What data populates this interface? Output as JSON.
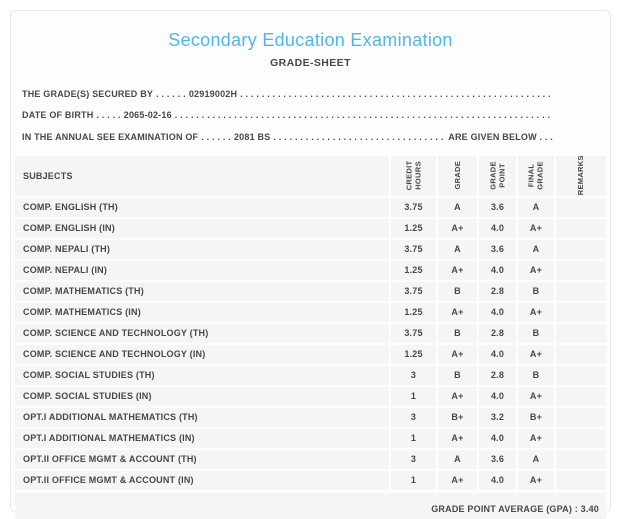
{
  "header": {
    "title": "Secondary Education Examination",
    "subtitle": "GRADE-SHEET"
  },
  "info": {
    "secured_by": {
      "label": "THE GRADE(S) SECURED BY",
      "leader": ". . . . . .",
      "value": "02919002H",
      "trailer": ". . . . . . . . . . . . . . . . . . . . . . . . . . . . . . . . . . . . . . . . . . . . . . . . . . . . . . . . . . . . . . . . . . . . . ."
    },
    "date_of_birth": {
      "label": "DATE OF BIRTH",
      "leader": ". . . . .",
      "value": "2065-02-16",
      "trailer": ". . . . . . . . . . . . . . . . . . . . . . . . . . . . . . . . . . . . . . . . . . . . . . . . . . . . . . . . . . . . . . . . . . . . . ."
    },
    "examination": {
      "label": "IN THE ANNUAL SEE EXAMINATION OF",
      "leader": ". . . . . .",
      "value": "2081 BS",
      "trailer": ". . . . . . . . . . . . . . . . . . . . . . . . . . . . . . . . . . . . . . . . . . . . . . . . . .",
      "suffix": "ARE GIVEN BELOW . . ."
    }
  },
  "table": {
    "subjects_header": "SUBJECTS",
    "columns": [
      "CREDIT HOURS",
      "GRADE",
      "GRADE POINT",
      "FINAL GRADE",
      "REMARKS"
    ],
    "rows": [
      {
        "subject": "COMP. ENGLISH (TH)",
        "credit_hours": "3.75",
        "grade": "A",
        "grade_point": "3.6",
        "final_grade": "A",
        "remarks": ""
      },
      {
        "subject": "COMP. ENGLISH (IN)",
        "credit_hours": "1.25",
        "grade": "A+",
        "grade_point": "4.0",
        "final_grade": "A+",
        "remarks": ""
      },
      {
        "subject": "COMP. NEPALI (TH)",
        "credit_hours": "3.75",
        "grade": "A",
        "grade_point": "3.6",
        "final_grade": "A",
        "remarks": ""
      },
      {
        "subject": "COMP. NEPALI (IN)",
        "credit_hours": "1.25",
        "grade": "A+",
        "grade_point": "4.0",
        "final_grade": "A+",
        "remarks": ""
      },
      {
        "subject": "COMP. MATHEMATICS (TH)",
        "credit_hours": "3.75",
        "grade": "B",
        "grade_point": "2.8",
        "final_grade": "B",
        "remarks": ""
      },
      {
        "subject": "COMP. MATHEMATICS (IN)",
        "credit_hours": "1.25",
        "grade": "A+",
        "grade_point": "4.0",
        "final_grade": "A+",
        "remarks": ""
      },
      {
        "subject": "COMP. SCIENCE AND TECHNOLOGY (TH)",
        "credit_hours": "3.75",
        "grade": "B",
        "grade_point": "2.8",
        "final_grade": "B",
        "remarks": ""
      },
      {
        "subject": "COMP. SCIENCE AND TECHNOLOGY (IN)",
        "credit_hours": "1.25",
        "grade": "A+",
        "grade_point": "4.0",
        "final_grade": "A+",
        "remarks": ""
      },
      {
        "subject": "COMP. SOCIAL STUDIES (TH)",
        "credit_hours": "3",
        "grade": "B",
        "grade_point": "2.8",
        "final_grade": "B",
        "remarks": ""
      },
      {
        "subject": "COMP. SOCIAL STUDIES (IN)",
        "credit_hours": "1",
        "grade": "A+",
        "grade_point": "4.0",
        "final_grade": "A+",
        "remarks": ""
      },
      {
        "subject": "OPT.I ADDITIONAL MATHEMATICS (TH)",
        "credit_hours": "3",
        "grade": "B+",
        "grade_point": "3.2",
        "final_grade": "B+",
        "remarks": ""
      },
      {
        "subject": "OPT.I ADDITIONAL MATHEMATICS (IN)",
        "credit_hours": "1",
        "grade": "A+",
        "grade_point": "4.0",
        "final_grade": "A+",
        "remarks": ""
      },
      {
        "subject": "OPT.II OFFICE MGMT & ACCOUNT (TH)",
        "credit_hours": "3",
        "grade": "A",
        "grade_point": "3.6",
        "final_grade": "A",
        "remarks": ""
      },
      {
        "subject": "OPT.II OFFICE MGMT & ACCOUNT (IN)",
        "credit_hours": "1",
        "grade": "A+",
        "grade_point": "4.0",
        "final_grade": "A+",
        "remarks": ""
      }
    ]
  },
  "footer": {
    "gpa_label": "GRADE POINT AVERAGE (GPA) :",
    "gpa_value": "3.40"
  },
  "colors": {
    "accent_blue": "#4eb6e8",
    "text": "#474747",
    "row_background": "#f5f5f5",
    "card_border": "#e9e9e9"
  }
}
